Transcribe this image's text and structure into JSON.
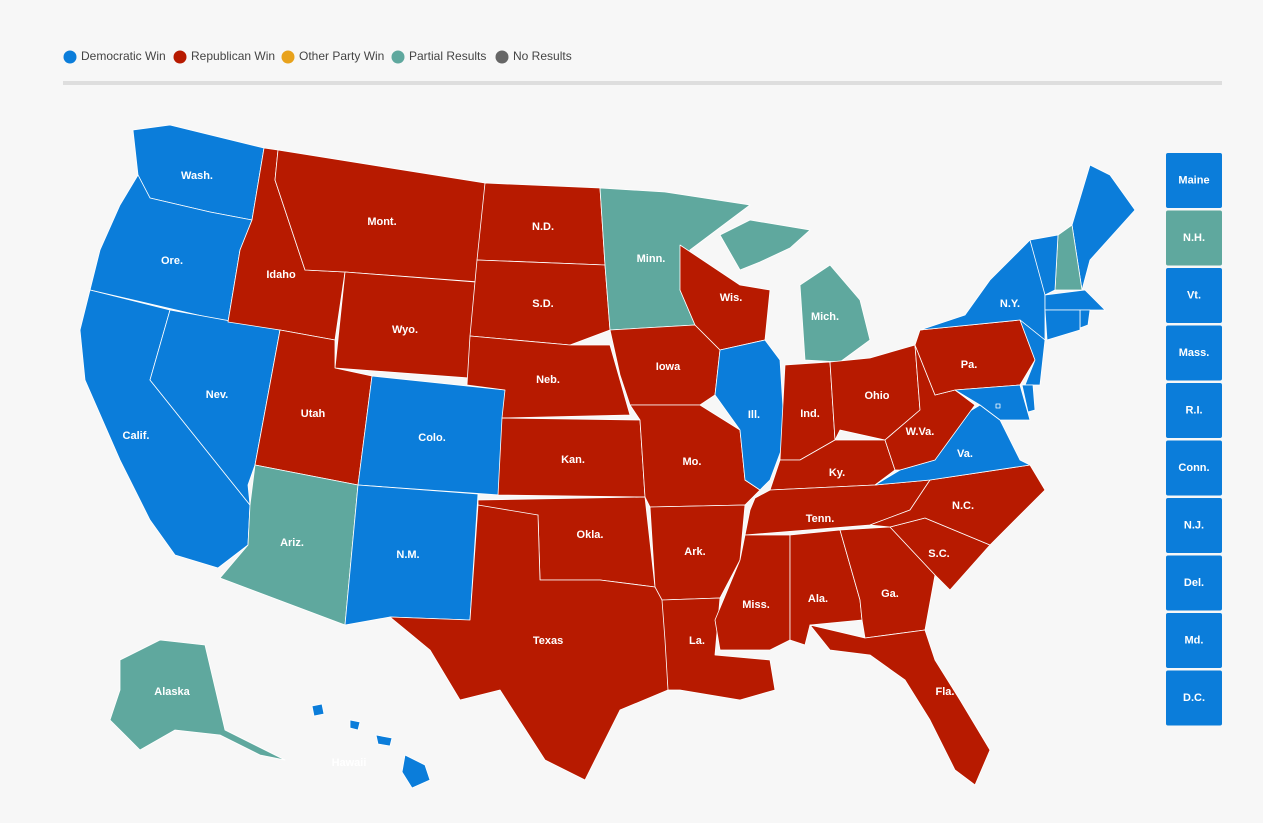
{
  "legend": [
    {
      "label": "Democratic Win",
      "color": "#0b7dda"
    },
    {
      "label": "Republican Win",
      "color": "#b71a00"
    },
    {
      "label": "Other Party Win",
      "color": "#e8a21c"
    },
    {
      "label": "Partial Results",
      "color": "#5fa89e"
    },
    {
      "label": "No Results",
      "color": "#666666"
    }
  ],
  "states": [
    {
      "label": "Wash.",
      "color": "#0b7dda"
    },
    {
      "label": "Ore.",
      "color": "#0b7dda"
    },
    {
      "label": "Calif.",
      "color": "#0b7dda"
    },
    {
      "label": "Nev.",
      "color": "#0b7dda"
    },
    {
      "label": "Idaho",
      "color": "#b71a00"
    },
    {
      "label": "Mont.",
      "color": "#b71a00"
    },
    {
      "label": "Wyo.",
      "color": "#b71a00"
    },
    {
      "label": "Utah",
      "color": "#b71a00"
    },
    {
      "label": "Ariz.",
      "color": "#5fa89e"
    },
    {
      "label": "Colo.",
      "color": "#0b7dda"
    },
    {
      "label": "N.M.",
      "color": "#0b7dda"
    },
    {
      "label": "N.D.",
      "color": "#b71a00"
    },
    {
      "label": "S.D.",
      "color": "#b71a00"
    },
    {
      "label": "Neb.",
      "color": "#b71a00"
    },
    {
      "label": "Kan.",
      "color": "#b71a00"
    },
    {
      "label": "Okla.",
      "color": "#b71a00"
    },
    {
      "label": "Texas",
      "color": "#b71a00"
    },
    {
      "label": "Minn.",
      "color": "#5fa89e"
    },
    {
      "label": "Iowa",
      "color": "#b71a00"
    },
    {
      "label": "Mo.",
      "color": "#b71a00"
    },
    {
      "label": "Ark.",
      "color": "#b71a00"
    },
    {
      "label": "La.",
      "color": "#b71a00"
    },
    {
      "label": "Wis.",
      "color": "#b71a00"
    },
    {
      "label": "Ill.",
      "color": "#0b7dda"
    },
    {
      "label": "Mich.",
      "color": "#5fa89e"
    },
    {
      "label": "Ind.",
      "color": "#b71a00"
    },
    {
      "label": "Ohio",
      "color": "#b71a00"
    },
    {
      "label": "Ky.",
      "color": "#b71a00"
    },
    {
      "label": "Tenn.",
      "color": "#b71a00"
    },
    {
      "label": "Miss.",
      "color": "#b71a00"
    },
    {
      "label": "Ala.",
      "color": "#b71a00"
    },
    {
      "label": "Ga.",
      "color": "#b71a00"
    },
    {
      "label": "Fla.",
      "color": "#b71a00"
    },
    {
      "label": "S.C.",
      "color": "#b71a00"
    },
    {
      "label": "N.C.",
      "color": "#b71a00"
    },
    {
      "label": "Va.",
      "color": "#0b7dda"
    },
    {
      "label": "W.Va.",
      "color": "#b71a00"
    },
    {
      "label": "Pa.",
      "color": "#b71a00"
    },
    {
      "label": "N.Y.",
      "color": "#0b7dda"
    },
    {
      "label": "Alaska",
      "color": "#5fa89e"
    },
    {
      "label": "Hawaii",
      "color": "#0b7dda"
    }
  ],
  "small_states": [
    {
      "label": "Maine",
      "color": "#0b7dda"
    },
    {
      "label": "N.H.",
      "color": "#5fa89e"
    },
    {
      "label": "Vt.",
      "color": "#0b7dda"
    },
    {
      "label": "Mass.",
      "color": "#0b7dda"
    },
    {
      "label": "R.I.",
      "color": "#0b7dda"
    },
    {
      "label": "Conn.",
      "color": "#0b7dda"
    },
    {
      "label": "N.J.",
      "color": "#0b7dda"
    },
    {
      "label": "Del.",
      "color": "#0b7dda"
    },
    {
      "label": "Md.",
      "color": "#0b7dda"
    },
    {
      "label": "D.C.",
      "color": "#0b7dda"
    }
  ]
}
